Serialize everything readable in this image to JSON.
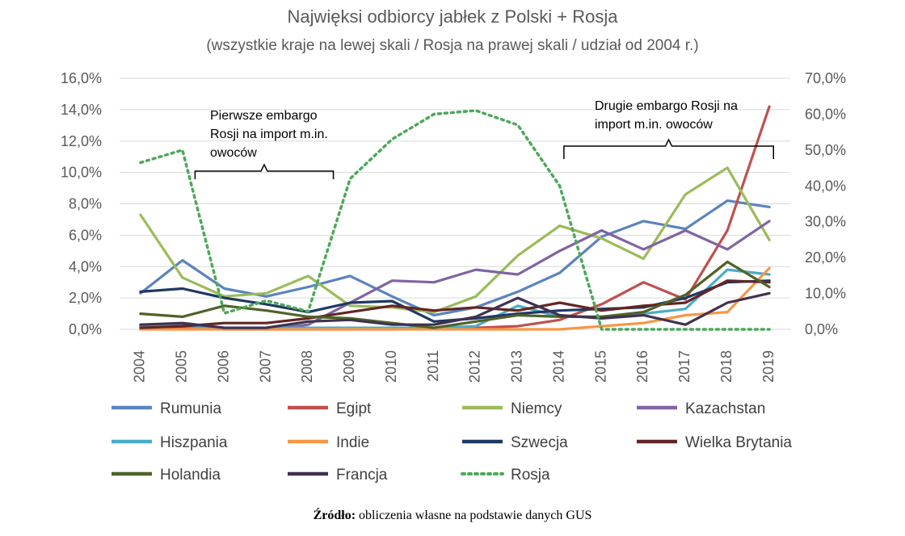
{
  "title": "Najwięksi odbiorcy jabłek z Polski + Rosja",
  "subtitle": "(wszystkie kraje na lewej skali / Rosja na prawej skali / udział od 2004 r.)",
  "source": {
    "label": "Źródło:",
    "text": " obliczenia własne na podstawie danych GUS"
  },
  "annotations": [
    {
      "lines": [
        "Pierwsze embargo",
        "Rosji na import m.in.",
        "owoców"
      ],
      "from": 2005.3,
      "to": 2008.6
    },
    {
      "lines": [
        "Drugie embargo Rosji na",
        "import m.in. owoców"
      ],
      "from": 2014.1,
      "to": 2019.1
    }
  ],
  "chart_data": {
    "type": "line",
    "x": [
      2004,
      2005,
      2006,
      2007,
      2008,
      2009,
      2010,
      2011,
      2012,
      2013,
      2014,
      2015,
      2016,
      2017,
      2018,
      2019
    ],
    "y_left": {
      "min": 0,
      "max": 16,
      "step": 2,
      "ticks": [
        "0,0%",
        "2,0%",
        "4,0%",
        "6,0%",
        "8,0%",
        "10,0%",
        "12,0%",
        "14,0%",
        "16,0%"
      ]
    },
    "y_right": {
      "min": 0,
      "max": 70,
      "step": 10,
      "ticks": [
        "0,0%",
        "10,0%",
        "20,0%",
        "30,0%",
        "40,0%",
        "50,0%",
        "60,0%",
        "70,0%"
      ]
    },
    "legend_position": "bottom",
    "series": [
      {
        "name": "Rumunia",
        "color": "#5B83C0",
        "axis": "left",
        "dash": false,
        "values": [
          2.3,
          4.4,
          2.6,
          2.1,
          2.7,
          3.4,
          2.1,
          0.9,
          1.4,
          2.4,
          3.6,
          5.9,
          6.9,
          6.4,
          8.2,
          7.8
        ]
      },
      {
        "name": "Egipt",
        "color": "#C0504D",
        "axis": "left",
        "dash": false,
        "values": [
          0.0,
          0.1,
          0.0,
          0.0,
          0.0,
          0.0,
          0.0,
          0.1,
          0.1,
          0.2,
          0.6,
          1.6,
          3.0,
          1.9,
          6.3,
          14.2
        ]
      },
      {
        "name": "Niemcy",
        "color": "#9BBB59",
        "axis": "left",
        "dash": false,
        "values": [
          7.3,
          3.3,
          2.1,
          2.3,
          3.4,
          1.5,
          1.4,
          1.1,
          2.1,
          4.7,
          6.6,
          5.8,
          4.5,
          8.6,
          10.3,
          5.7
        ]
      },
      {
        "name": "Kazachstan",
        "color": "#8064A2",
        "axis": "left",
        "dash": false,
        "values": [
          0.2,
          0.3,
          0.1,
          0.0,
          0.3,
          1.7,
          3.1,
          3.0,
          3.8,
          3.5,
          5.0,
          6.3,
          5.1,
          6.3,
          5.1,
          6.9
        ]
      },
      {
        "name": "Hiszpania",
        "color": "#4BACC6",
        "axis": "left",
        "dash": false,
        "values": [
          0.2,
          0.2,
          0.1,
          0.1,
          0.1,
          0.1,
          0.1,
          0.1,
          0.2,
          1.5,
          0.8,
          0.8,
          1.0,
          1.3,
          3.8,
          3.5
        ]
      },
      {
        "name": "Indie",
        "color": "#F79646",
        "axis": "left",
        "dash": false,
        "values": [
          0.0,
          0.0,
          0.0,
          0.0,
          0.0,
          0.0,
          0.0,
          0.0,
          0.0,
          0.0,
          0.0,
          0.2,
          0.4,
          0.9,
          1.1,
          3.9
        ]
      },
      {
        "name": "Szwecja",
        "color": "#1F3864",
        "axis": "left",
        "dash": false,
        "values": [
          2.4,
          2.6,
          2.0,
          1.6,
          1.1,
          1.7,
          1.8,
          0.5,
          0.7,
          1.0,
          1.2,
          1.3,
          1.4,
          2.0,
          3.0,
          3.1
        ]
      },
      {
        "name": "Wielka Brytania",
        "color": "#632523",
        "axis": "left",
        "dash": false,
        "values": [
          0.1,
          0.2,
          0.4,
          0.4,
          0.7,
          1.1,
          1.5,
          1.2,
          1.4,
          1.2,
          1.7,
          1.2,
          1.5,
          1.7,
          3.1,
          3.0
        ]
      },
      {
        "name": "Holandia",
        "color": "#4F6228",
        "axis": "left",
        "dash": false,
        "values": [
          1.0,
          0.8,
          1.5,
          1.2,
          0.8,
          0.7,
          0.4,
          0.1,
          0.5,
          0.9,
          0.8,
          0.8,
          1.1,
          2.2,
          4.3,
          2.7
        ]
      },
      {
        "name": "Francja",
        "color": "#403151",
        "axis": "left",
        "dash": false,
        "values": [
          0.3,
          0.4,
          0.1,
          0.1,
          0.5,
          0.6,
          0.3,
          0.3,
          0.8,
          2.0,
          0.9,
          0.7,
          0.9,
          0.3,
          1.7,
          2.3
        ]
      },
      {
        "name": "Rosja",
        "color": "#4EA85A",
        "axis": "right",
        "dash": true,
        "values": [
          46.5,
          50.0,
          4.5,
          8.0,
          5.0,
          42.0,
          53.0,
          60.0,
          61.0,
          57.0,
          40.0,
          0.0,
          0.0,
          0.0,
          0.0,
          0.0
        ]
      }
    ]
  }
}
